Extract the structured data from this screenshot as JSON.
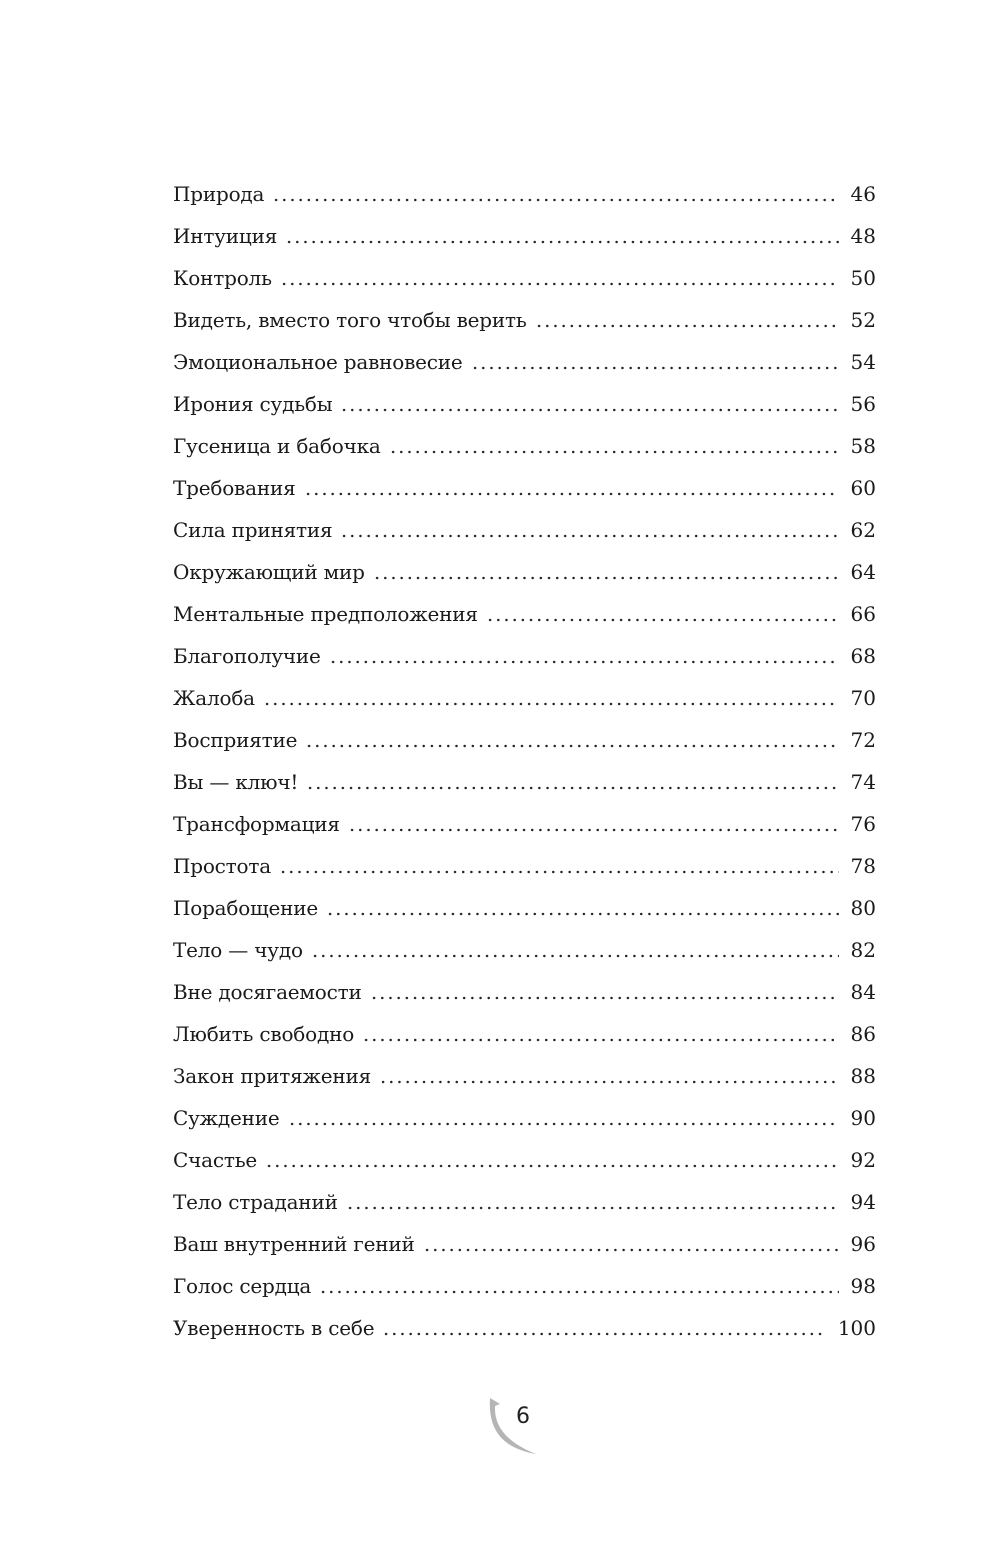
{
  "toc": [
    {
      "title": "Природа",
      "page": "46"
    },
    {
      "title": "Интуиция",
      "page": "48"
    },
    {
      "title": "Контроль",
      "page": "50"
    },
    {
      "title": "Видеть, вместо того чтобы верить",
      "page": "52"
    },
    {
      "title": "Эмоциональное равновесие",
      "page": "54"
    },
    {
      "title": "Ирония судьбы",
      "page": "56"
    },
    {
      "title": "Гусеница и бабочка",
      "page": "58"
    },
    {
      "title": "Требования",
      "page": "60"
    },
    {
      "title": "Сила принятия",
      "page": "62"
    },
    {
      "title": "Окружающий мир",
      "page": "64"
    },
    {
      "title": "Ментальные предположения",
      "page": "66"
    },
    {
      "title": "Благополучие",
      "page": "68"
    },
    {
      "title": "Жалоба",
      "page": "70"
    },
    {
      "title": "Восприятие",
      "page": "72"
    },
    {
      "title": "Вы — ключ!",
      "page": "74"
    },
    {
      "title": "Трансформация",
      "page": "76"
    },
    {
      "title": "Простота",
      "page": "78"
    },
    {
      "title": "Порабощение",
      "page": "80"
    },
    {
      "title": "Тело — чудо",
      "page": "82"
    },
    {
      "title": "Вне досягаемости",
      "page": "84"
    },
    {
      "title": "Любить свободно",
      "page": "86"
    },
    {
      "title": "Закон притяжения",
      "page": "88"
    },
    {
      "title": "Суждение",
      "page": "90"
    },
    {
      "title": "Счастье",
      "page": "92"
    },
    {
      "title": "Тело страданий",
      "page": "94"
    },
    {
      "title": "Ваш внутренний гений",
      "page": "96"
    },
    {
      "title": "Голос сердца",
      "page": "98"
    },
    {
      "title": "Уверенность в себе",
      "page": "100"
    }
  ],
  "folio": {
    "page_number": "6",
    "ornament_color": "#b5b5b5"
  }
}
